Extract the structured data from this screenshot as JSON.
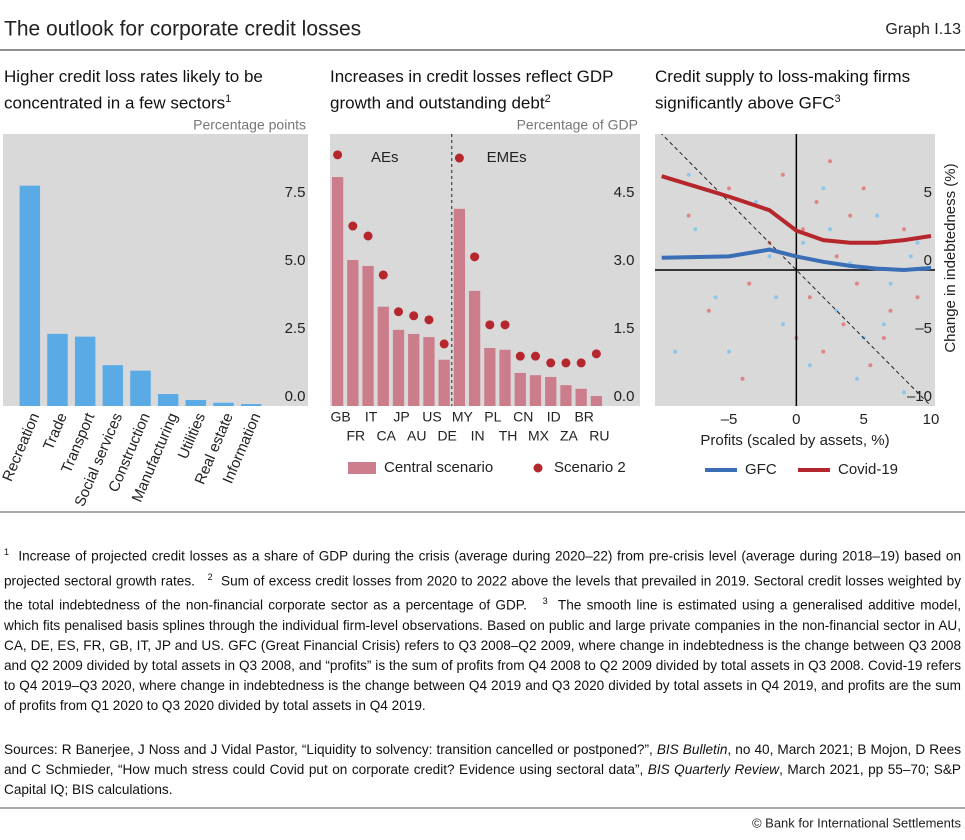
{
  "header": {
    "title": "The outlook for corporate credit losses",
    "graph_number": "Graph I.13"
  },
  "chart_data": [
    {
      "type": "bar",
      "title": "Higher credit loss rates likely to be concentrated in a few sectors",
      "title_note": "1",
      "unit": "Percentage points",
      "categories": [
        "Recreation",
        "Trade",
        "Transport",
        "Social services",
        "Construction",
        "Manufacturing",
        "Utilities",
        "Real estate",
        "Information"
      ],
      "values": [
        8.1,
        2.65,
        2.55,
        1.5,
        1.3,
        0.44,
        0.22,
        0.12,
        0.07
      ],
      "color": "#5aaae6",
      "ylim": [
        0,
        10
      ],
      "yticks": [
        {
          "value": 0,
          "label": "0.0"
        },
        2.5,
        {
          "value": 5,
          "label": "5.0"
        },
        7.5
      ]
    },
    {
      "type": "bar",
      "title": "Increases in credit losses reflect GDP growth and outstanding debt",
      "title_note": "2",
      "unit": "Percentage of GDP",
      "groups": [
        "AEs",
        "EMEs"
      ],
      "categories": [
        "GB",
        "FR",
        "IT",
        "CA",
        "JP",
        "AU",
        "US",
        "DE",
        "MY",
        "IN",
        "PL",
        "TH",
        "CN",
        "MX",
        "ID",
        "ZA",
        "BR",
        "RU"
      ],
      "series": [
        {
          "name": "Central scenario",
          "color": "#cc7d8c",
          "marker": "bar",
          "values": [
            5.05,
            3.22,
            3.09,
            2.19,
            1.68,
            1.59,
            1.52,
            1.02,
            4.35,
            2.54,
            1.28,
            1.24,
            0.73,
            0.68,
            0.64,
            0.46,
            0.38,
            0.22
          ]
        },
        {
          "name": "Scenario 2",
          "color": "#b5272d",
          "marker": "dot",
          "values": [
            5.54,
            3.97,
            3.75,
            2.89,
            2.08,
            1.99,
            1.9,
            1.37,
            5.47,
            3.29,
            1.79,
            1.79,
            1.1,
            1.1,
            0.95,
            0.95,
            0.95,
            1.15
          ]
        }
      ],
      "ylim": [
        0,
        6
      ],
      "yticks": [
        {
          "value": 0,
          "label": "0.0"
        },
        1.5,
        {
          "value": 3,
          "label": "3.0"
        },
        4.5
      ]
    },
    {
      "type": "scatter",
      "title": "Credit supply to loss-making firms significantly above GFC",
      "title_note": "3",
      "xlabel": "Profits (scaled by assets, %)",
      "ylabel": "Change in indebtedness (%)",
      "xlim": [
        -10.5,
        10.3
      ],
      "ylim": [
        -10,
        10
      ],
      "xticks": [
        {
          "value": -5,
          "label": "–5"
        },
        0,
        5,
        10
      ],
      "yticks": [
        {
          "value": -10,
          "label": "–10"
        },
        {
          "value": -5,
          "label": "–5"
        },
        0,
        5
      ],
      "series": [
        {
          "name": "GFC",
          "color": "#3a6eb5",
          "point_color": "#8ec6ea",
          "x": [
            -10,
            -5,
            -2,
            0,
            2,
            4,
            6,
            8,
            10
          ],
          "values": [
            0.9,
            1.0,
            1.5,
            1.0,
            0.6,
            0.3,
            0.1,
            0,
            0.15
          ],
          "points_x": [
            -9,
            -7.5,
            -6,
            -4,
            -3,
            -2,
            -1,
            0.5,
            1,
            2,
            3,
            4,
            5,
            6,
            7,
            8,
            9,
            -8,
            -5,
            -1.5,
            2.5,
            4.5,
            6.5,
            8.5
          ],
          "points_y": [
            -6,
            3,
            -2,
            -8,
            5,
            1,
            -4,
            2,
            -7,
            6,
            -3,
            0.5,
            -5,
            4,
            -1,
            -9,
            2,
            7,
            -6,
            -2,
            3,
            -8,
            -4,
            1
          ]
        },
        {
          "name": "Covid-19",
          "color": "#b5272d",
          "point_color": "#e08585",
          "x": [
            -10,
            -5,
            -2,
            0,
            2,
            4,
            6,
            8,
            10
          ],
          "values": [
            6.9,
            5.4,
            4.4,
            2.9,
            2.2,
            2.0,
            2.0,
            2.2,
            2.5
          ],
          "points_x": [
            -8,
            -6.5,
            -5,
            -3.5,
            -2,
            -1,
            0,
            0.5,
            1,
            1.5,
            2,
            3,
            3.5,
            4,
            4.5,
            5,
            5.5,
            6,
            7,
            8,
            9,
            -4,
            2.5,
            6.5
          ],
          "points_y": [
            4,
            -3,
            6,
            -1,
            2,
            7,
            -5,
            3,
            -2,
            5,
            -6,
            1,
            -4,
            4,
            -1,
            6,
            -7,
            2,
            -3,
            3,
            -2,
            -8,
            8,
            -5
          ]
        }
      ]
    }
  ],
  "notes": [
    {
      "marker": "1",
      "text": "Increase of projected credit losses as a share of GDP during the crisis (average during 2020–22) from pre-crisis level (average during 2018–19) based on projected sectoral growth rates."
    },
    {
      "marker": "2",
      "text": "Sum of excess credit losses from 2020 to 2022 above the levels that prevailed in 2019. Sectoral credit losses weighted by the total indebtedness of the non-financial corporate sector as a percentage of GDP."
    },
    {
      "marker": "3",
      "text": "The smooth line is estimated using a generalised additive model, which fits penalised basis splines through the individual firm-level observations. Based on public and large private companies in the non-financial sector in AU, CA, DE, ES, FR, GB, IT, JP and US. GFC (Great Financial Crisis) refers to Q3 2008–Q2 2009, where change in indebtedness is the change between Q3 2008 and Q2 2009 divided by total assets in Q3 2008, and “profits” is the sum of profits from Q4 2008 to Q2 2009 divided by total assets in Q3 2008. Covid-19 refers to Q4 2019–Q3 2020, where change in indebtedness is the change between Q4 2019 and Q3 2020 divided by total assets in Q4 2019, and profits are the sum of profits from Q1 2020 to Q3 2020 divided by total assets in Q4 2019."
    }
  ],
  "sources": [
    "Sources: R Banerjee, J Noss and J Vidal Pastor, “Liquidity to solvency: transition cancelled or postponed?”, ",
    "BIS Bulletin",
    ", no 40, March 2021; B Mojon, D Rees and C Schmieder, “How much stress could Covid put on corporate credit? Evidence using sectoral data”, ",
    "BIS Quarterly Review",
    ", March 2021, pp 55–70; S&P Capital IQ; BIS calculations."
  ],
  "copyright": "© Bank for International Settlements"
}
